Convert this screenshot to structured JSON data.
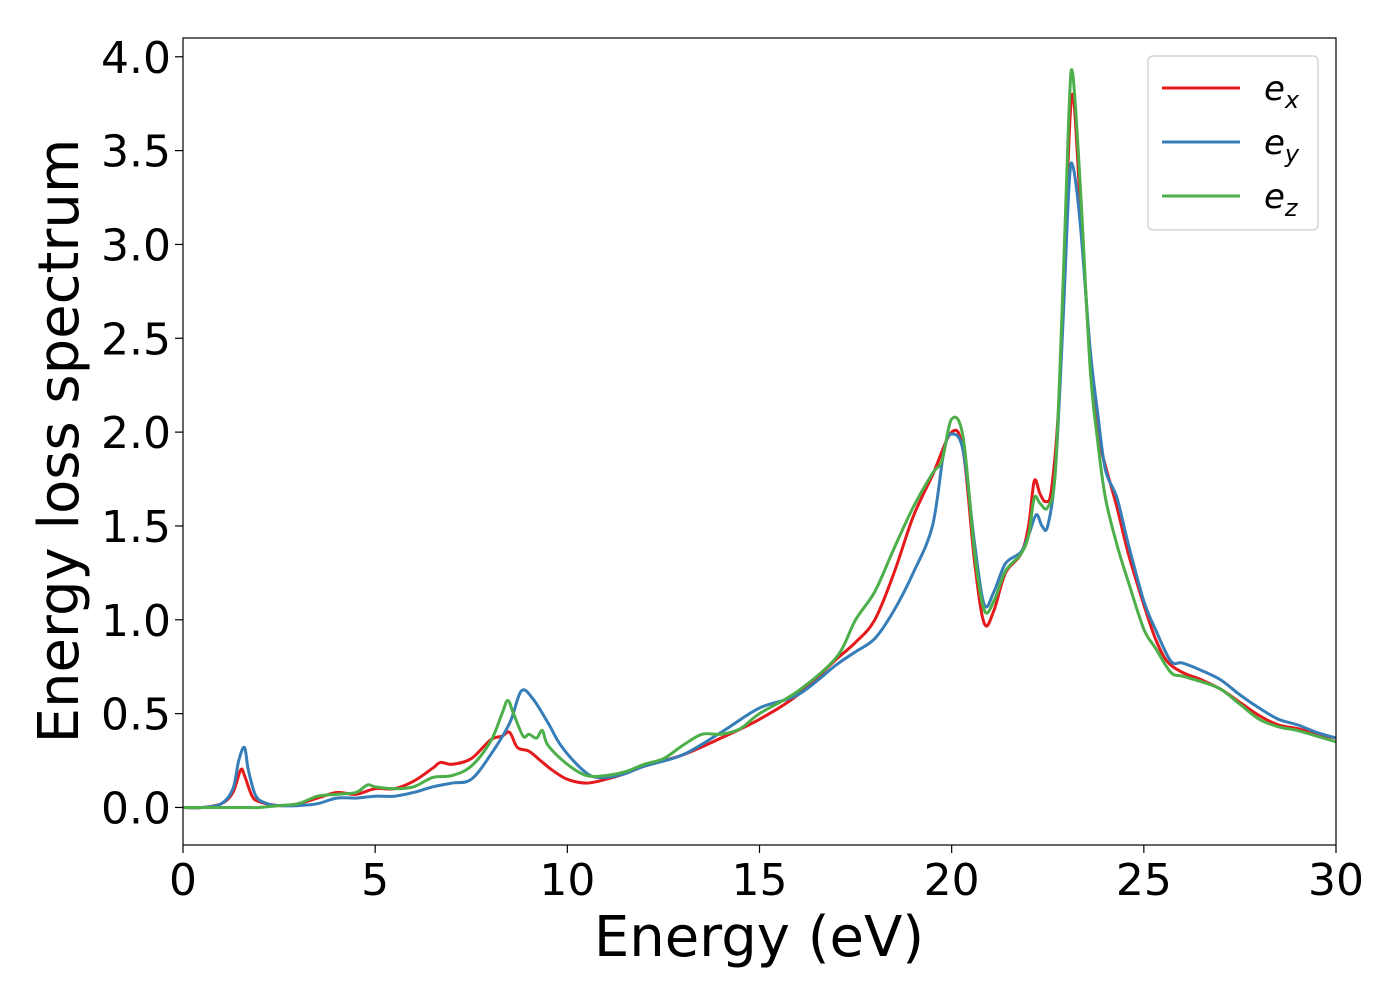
{
  "chart_data": {
    "type": "line",
    "title": "",
    "xlabel": "Energy (eV)",
    "ylabel": "Energy loss spectrum",
    "xlim": [
      0,
      30
    ],
    "ylim": [
      -0.2,
      4.1
    ],
    "xticks": [
      0,
      5,
      10,
      15,
      20,
      25,
      30
    ],
    "xtick_labels": [
      "0",
      "5",
      "10",
      "15",
      "20",
      "25",
      "30"
    ],
    "yticks": [
      0.0,
      0.5,
      1.0,
      1.5,
      2.0,
      2.5,
      3.0,
      3.5,
      4.0
    ],
    "ytick_labels": [
      "0.0",
      "0.5",
      "1.0",
      "1.5",
      "2.0",
      "2.5",
      "3.0",
      "3.5",
      "4.0"
    ],
    "grid": false,
    "legend_position": "top-right",
    "series": [
      {
        "name": "e_x",
        "label_base": "e",
        "label_sub": "x",
        "color": "#e41a1c",
        "points": [
          [
            0,
            0.0
          ],
          [
            0.5,
            0.0
          ],
          [
            1.0,
            0.02
          ],
          [
            1.3,
            0.08
          ],
          [
            1.5,
            0.2
          ],
          [
            1.6,
            0.17
          ],
          [
            1.8,
            0.06
          ],
          [
            2.0,
            0.03
          ],
          [
            2.5,
            0.01
          ],
          [
            3.0,
            0.02
          ],
          [
            3.5,
            0.05
          ],
          [
            4.0,
            0.08
          ],
          [
            4.5,
            0.07
          ],
          [
            5.0,
            0.1
          ],
          [
            5.5,
            0.1
          ],
          [
            6.0,
            0.14
          ],
          [
            6.5,
            0.21
          ],
          [
            6.7,
            0.24
          ],
          [
            7.0,
            0.23
          ],
          [
            7.5,
            0.26
          ],
          [
            8.0,
            0.36
          ],
          [
            8.3,
            0.38
          ],
          [
            8.5,
            0.4
          ],
          [
            8.7,
            0.32
          ],
          [
            9.0,
            0.3
          ],
          [
            9.3,
            0.25
          ],
          [
            9.6,
            0.2
          ],
          [
            10.0,
            0.15
          ],
          [
            10.5,
            0.13
          ],
          [
            11.0,
            0.15
          ],
          [
            11.5,
            0.18
          ],
          [
            12.0,
            0.22
          ],
          [
            13.0,
            0.28
          ],
          [
            14.0,
            0.37
          ],
          [
            15.0,
            0.47
          ],
          [
            16.0,
            0.6
          ],
          [
            17.0,
            0.79
          ],
          [
            17.5,
            0.88
          ],
          [
            18.0,
            1.0
          ],
          [
            18.5,
            1.25
          ],
          [
            19.0,
            1.55
          ],
          [
            19.5,
            1.77
          ],
          [
            20.0,
            2.0
          ],
          [
            20.3,
            1.9
          ],
          [
            20.6,
            1.3
          ],
          [
            20.85,
            0.98
          ],
          [
            21.1,
            1.05
          ],
          [
            21.4,
            1.25
          ],
          [
            21.8,
            1.35
          ],
          [
            22.0,
            1.5
          ],
          [
            22.15,
            1.74
          ],
          [
            22.3,
            1.67
          ],
          [
            22.45,
            1.63
          ],
          [
            22.6,
            1.7
          ],
          [
            22.8,
            2.2
          ],
          [
            23.0,
            3.3
          ],
          [
            23.15,
            3.8
          ],
          [
            23.35,
            3.2
          ],
          [
            23.6,
            2.4
          ],
          [
            23.8,
            2.0
          ],
          [
            24.0,
            1.82
          ],
          [
            24.3,
            1.6
          ],
          [
            24.6,
            1.35
          ],
          [
            25.0,
            1.08
          ],
          [
            25.3,
            0.9
          ],
          [
            25.6,
            0.78
          ],
          [
            26.0,
            0.72
          ],
          [
            26.5,
            0.68
          ],
          [
            27.0,
            0.63
          ],
          [
            27.5,
            0.56
          ],
          [
            28.0,
            0.49
          ],
          [
            28.5,
            0.44
          ],
          [
            29.0,
            0.42
          ],
          [
            29.5,
            0.39
          ],
          [
            30.0,
            0.37
          ]
        ]
      },
      {
        "name": "e_y",
        "label_base": "e",
        "label_sub": "y",
        "color": "#377eb8",
        "points": [
          [
            0,
            0.0
          ],
          [
            0.5,
            0.0
          ],
          [
            1.0,
            0.02
          ],
          [
            1.3,
            0.1
          ],
          [
            1.45,
            0.25
          ],
          [
            1.6,
            0.32
          ],
          [
            1.7,
            0.2
          ],
          [
            1.9,
            0.06
          ],
          [
            2.2,
            0.02
          ],
          [
            2.5,
            0.01
          ],
          [
            3.0,
            0.01
          ],
          [
            3.5,
            0.02
          ],
          [
            4.0,
            0.05
          ],
          [
            4.5,
            0.05
          ],
          [
            5.0,
            0.06
          ],
          [
            5.5,
            0.06
          ],
          [
            6.0,
            0.08
          ],
          [
            6.5,
            0.11
          ],
          [
            7.0,
            0.13
          ],
          [
            7.5,
            0.15
          ],
          [
            8.0,
            0.28
          ],
          [
            8.5,
            0.45
          ],
          [
            8.8,
            0.62
          ],
          [
            9.1,
            0.58
          ],
          [
            9.5,
            0.45
          ],
          [
            9.8,
            0.34
          ],
          [
            10.2,
            0.24
          ],
          [
            10.6,
            0.17
          ],
          [
            11.0,
            0.16
          ],
          [
            11.5,
            0.18
          ],
          [
            12.0,
            0.22
          ],
          [
            13.0,
            0.28
          ],
          [
            14.0,
            0.4
          ],
          [
            15.0,
            0.53
          ],
          [
            16.0,
            0.6
          ],
          [
            17.0,
            0.76
          ],
          [
            17.5,
            0.83
          ],
          [
            18.0,
            0.9
          ],
          [
            18.5,
            1.05
          ],
          [
            19.0,
            1.25
          ],
          [
            19.5,
            1.5
          ],
          [
            19.8,
            1.9
          ],
          [
            20.0,
            1.99
          ],
          [
            20.3,
            1.9
          ],
          [
            20.6,
            1.4
          ],
          [
            20.85,
            1.08
          ],
          [
            21.1,
            1.15
          ],
          [
            21.4,
            1.3
          ],
          [
            21.8,
            1.36
          ],
          [
            22.0,
            1.45
          ],
          [
            22.2,
            1.56
          ],
          [
            22.35,
            1.5
          ],
          [
            22.5,
            1.5
          ],
          [
            22.7,
            1.8
          ],
          [
            22.9,
            2.6
          ],
          [
            23.05,
            3.3
          ],
          [
            23.15,
            3.42
          ],
          [
            23.35,
            3.1
          ],
          [
            23.6,
            2.45
          ],
          [
            23.8,
            2.1
          ],
          [
            24.0,
            1.8
          ],
          [
            24.3,
            1.65
          ],
          [
            24.6,
            1.4
          ],
          [
            25.0,
            1.1
          ],
          [
            25.3,
            0.95
          ],
          [
            25.7,
            0.78
          ],
          [
            26.0,
            0.77
          ],
          [
            26.5,
            0.73
          ],
          [
            27.0,
            0.68
          ],
          [
            27.5,
            0.6
          ],
          [
            28.0,
            0.53
          ],
          [
            28.5,
            0.47
          ],
          [
            29.0,
            0.44
          ],
          [
            29.5,
            0.4
          ],
          [
            30.0,
            0.37
          ]
        ]
      },
      {
        "name": "e_z",
        "label_base": "e",
        "label_sub": "z",
        "color": "#4daf4a",
        "points": [
          [
            0,
            0.0
          ],
          [
            0.5,
            0.0
          ],
          [
            1.0,
            0.0
          ],
          [
            1.5,
            0.0
          ],
          [
            2.0,
            0.0
          ],
          [
            2.5,
            0.01
          ],
          [
            3.0,
            0.02
          ],
          [
            3.5,
            0.06
          ],
          [
            4.0,
            0.07
          ],
          [
            4.5,
            0.08
          ],
          [
            4.8,
            0.12
          ],
          [
            5.0,
            0.11
          ],
          [
            5.5,
            0.1
          ],
          [
            6.0,
            0.11
          ],
          [
            6.5,
            0.16
          ],
          [
            7.0,
            0.17
          ],
          [
            7.5,
            0.22
          ],
          [
            8.0,
            0.35
          ],
          [
            8.3,
            0.5
          ],
          [
            8.45,
            0.57
          ],
          [
            8.6,
            0.5
          ],
          [
            8.85,
            0.38
          ],
          [
            9.0,
            0.39
          ],
          [
            9.2,
            0.37
          ],
          [
            9.35,
            0.41
          ],
          [
            9.5,
            0.33
          ],
          [
            10.0,
            0.23
          ],
          [
            10.5,
            0.17
          ],
          [
            11.0,
            0.17
          ],
          [
            11.5,
            0.19
          ],
          [
            12.0,
            0.23
          ],
          [
            12.5,
            0.26
          ],
          [
            13.0,
            0.33
          ],
          [
            13.5,
            0.39
          ],
          [
            14.0,
            0.39
          ],
          [
            14.5,
            0.42
          ],
          [
            15.0,
            0.5
          ],
          [
            16.0,
            0.62
          ],
          [
            17.0,
            0.8
          ],
          [
            17.5,
            1.0
          ],
          [
            18.0,
            1.15
          ],
          [
            18.5,
            1.38
          ],
          [
            19.0,
            1.6
          ],
          [
            19.5,
            1.78
          ],
          [
            19.75,
            1.85
          ],
          [
            20.0,
            2.07
          ],
          [
            20.3,
            1.97
          ],
          [
            20.6,
            1.35
          ],
          [
            20.85,
            1.05
          ],
          [
            21.1,
            1.1
          ],
          [
            21.4,
            1.26
          ],
          [
            21.8,
            1.35
          ],
          [
            22.0,
            1.45
          ],
          [
            22.15,
            1.65
          ],
          [
            22.3,
            1.62
          ],
          [
            22.5,
            1.6
          ],
          [
            22.7,
            1.8
          ],
          [
            22.9,
            2.8
          ],
          [
            23.05,
            3.7
          ],
          [
            23.15,
            3.91
          ],
          [
            23.35,
            3.3
          ],
          [
            23.6,
            2.35
          ],
          [
            23.8,
            1.95
          ],
          [
            24.0,
            1.65
          ],
          [
            24.3,
            1.4
          ],
          [
            24.6,
            1.2
          ],
          [
            25.0,
            0.95
          ],
          [
            25.3,
            0.85
          ],
          [
            25.7,
            0.72
          ],
          [
            26.0,
            0.7
          ],
          [
            26.5,
            0.67
          ],
          [
            27.0,
            0.63
          ],
          [
            27.5,
            0.55
          ],
          [
            28.0,
            0.47
          ],
          [
            28.5,
            0.43
          ],
          [
            29.0,
            0.41
          ],
          [
            29.5,
            0.38
          ],
          [
            30.0,
            0.35
          ]
        ]
      }
    ]
  }
}
